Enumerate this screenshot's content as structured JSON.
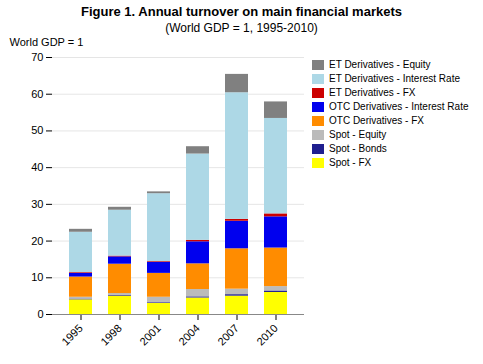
{
  "chart_data": {
    "type": "bar",
    "stacked": true,
    "title": "Figure 1. Annual turnover on main financial markets",
    "subtitle": "(World GDP = 1, 1995-2010)",
    "ylabel": "World GDP = 1",
    "categories": [
      "1995",
      "1998",
      "2001",
      "2004",
      "2007",
      "2010"
    ],
    "series": [
      {
        "name": "Spot - FX",
        "color": "#FFFF00",
        "values": [
          4.0,
          5.0,
          3.0,
          4.5,
          5.0,
          6.0
        ]
      },
      {
        "name": "Spot - Bonds",
        "color": "#1F1F8F",
        "values": [
          0.2,
          0.2,
          0.2,
          0.3,
          0.4,
          0.4
        ]
      },
      {
        "name": "Spot - Equity",
        "color": "#BBBBBB",
        "values": [
          0.5,
          0.5,
          1.5,
          2.0,
          1.5,
          1.2
        ]
      },
      {
        "name": "OTC Derivatives - FX",
        "color": "#FF8C00",
        "values": [
          5.5,
          8.0,
          6.5,
          7.0,
          11.0,
          10.5
        ]
      },
      {
        "name": "OTC Derivatives - Interest Rate",
        "color": "#0000EE",
        "values": [
          1.0,
          2.0,
          3.0,
          6.0,
          7.5,
          8.5
        ]
      },
      {
        "name": "ET Derivatives - FX",
        "color": "#CC0000",
        "values": [
          0.2,
          0.2,
          0.2,
          0.4,
          0.5,
          0.8
        ]
      },
      {
        "name": "ET Derivatives - Interest Rate",
        "color": "#ADD8E6",
        "values": [
          11.0,
          12.5,
          18.5,
          23.5,
          34.5,
          26.0
        ]
      },
      {
        "name": "ET Derivatives - Equity",
        "color": "#808080",
        "values": [
          0.8,
          0.8,
          0.5,
          2.0,
          5.0,
          4.5
        ]
      }
    ],
    "ylim": [
      0,
      70
    ],
    "yticks": [
      0,
      10,
      20,
      30,
      40,
      50,
      60,
      70
    ],
    "grid": true,
    "legend": "right"
  }
}
